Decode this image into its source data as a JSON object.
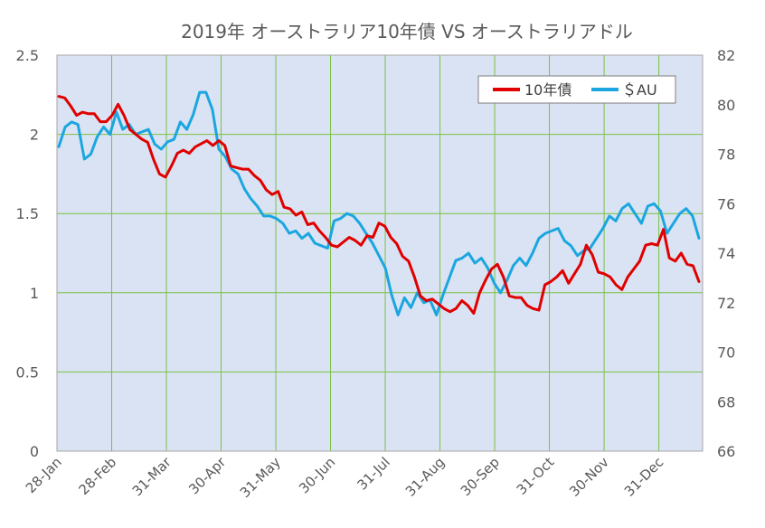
{
  "chart_data": {
    "type": "line",
    "title": "2019年 オーストラリア10年債 VS オーストラリアドル",
    "legend_placement": "top-right",
    "grid": true,
    "x_tick_labels": [
      "28-Jan",
      "28-Feb",
      "31-Mar",
      "30-Apr",
      "31-May",
      "30-Jun",
      "31-Jul",
      "31-Aug",
      "30-Sep",
      "31-Oct",
      "30-Nov",
      "31-Dec"
    ],
    "y_left": {
      "ylim": [
        0,
        2.5
      ],
      "ticks": [
        "0",
        "0.5",
        "1",
        "1.5",
        "2",
        "2.5"
      ]
    },
    "y_right": {
      "ylim": [
        66,
        82
      ],
      "ticks": [
        "66",
        "68",
        "70",
        "72",
        "74",
        "76",
        "78",
        "80",
        "82"
      ]
    },
    "series": [
      {
        "name": "10年債",
        "axis": "left",
        "color": "#e00000",
        "values": [
          2.24,
          2.23,
          2.18,
          2.12,
          2.14,
          2.13,
          2.13,
          2.08,
          2.08,
          2.12,
          2.19,
          2.12,
          2.03,
          2.0,
          1.97,
          1.95,
          1.84,
          1.75,
          1.73,
          1.8,
          1.88,
          1.9,
          1.88,
          1.92,
          1.94,
          1.96,
          1.93,
          1.96,
          1.93,
          1.8,
          1.79,
          1.78,
          1.78,
          1.74,
          1.71,
          1.65,
          1.62,
          1.64,
          1.54,
          1.53,
          1.49,
          1.51,
          1.43,
          1.44,
          1.39,
          1.35,
          1.3,
          1.29,
          1.32,
          1.35,
          1.33,
          1.3,
          1.36,
          1.35,
          1.44,
          1.42,
          1.35,
          1.31,
          1.23,
          1.2,
          1.1,
          0.98,
          0.95,
          0.96,
          0.93,
          0.9,
          0.88,
          0.9,
          0.95,
          0.92,
          0.87,
          1.0,
          1.08,
          1.15,
          1.18,
          1.1,
          0.98,
          0.97,
          0.97,
          0.92,
          0.9,
          0.89,
          1.05,
          1.07,
          1.1,
          1.14,
          1.06,
          1.12,
          1.18,
          1.3,
          1.24,
          1.13,
          1.12,
          1.1,
          1.05,
          1.02,
          1.1,
          1.15,
          1.2,
          1.3,
          1.31,
          1.3,
          1.4,
          1.22,
          1.2,
          1.25,
          1.18,
          1.17,
          1.07
        ]
      },
      {
        "name": "＄AU",
        "axis": "right",
        "color": "#1ba6e0",
        "values": [
          78.3,
          79.1,
          79.3,
          79.2,
          77.8,
          78.0,
          78.7,
          79.1,
          78.8,
          79.7,
          79.0,
          79.2,
          78.8,
          78.9,
          79.0,
          78.4,
          78.2,
          78.5,
          78.6,
          79.3,
          79.0,
          79.6,
          80.5,
          80.5,
          79.8,
          78.2,
          77.9,
          77.4,
          77.2,
          76.6,
          76.2,
          75.9,
          75.5,
          75.5,
          75.4,
          75.2,
          74.8,
          74.9,
          74.6,
          74.8,
          74.4,
          74.3,
          74.2,
          75.3,
          75.4,
          75.6,
          75.5,
          75.2,
          74.8,
          74.4,
          73.9,
          73.4,
          72.3,
          71.5,
          72.2,
          71.8,
          72.4,
          72.0,
          72.1,
          71.5,
          72.3,
          73.0,
          73.7,
          73.8,
          74.0,
          73.6,
          73.8,
          73.4,
          72.8,
          72.4,
          72.9,
          73.5,
          73.8,
          73.5,
          74.0,
          74.6,
          74.8,
          74.9,
          75.0,
          74.5,
          74.3,
          73.9,
          74.1,
          74.2,
          74.6,
          75.0,
          75.5,
          75.3,
          75.8,
          76.0,
          75.6,
          75.2,
          75.9,
          76.0,
          75.7,
          74.8,
          75.2,
          75.6,
          75.8,
          75.5,
          74.6
        ]
      }
    ]
  }
}
